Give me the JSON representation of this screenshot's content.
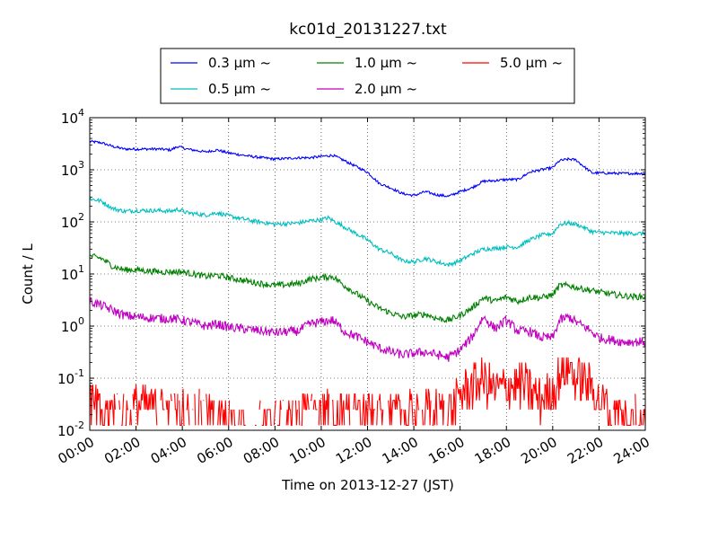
{
  "chart_data": {
    "type": "line",
    "title": "kc01d_20131227.txt",
    "xlabel": "Time on 2013-12-27 (JST)",
    "ylabel": "Count / L",
    "y_scale": "log",
    "ylim": [
      0.01,
      10000
    ],
    "xlim": [
      0,
      24
    ],
    "grid": true,
    "legend_position": "top",
    "x_tick_labels": [
      "00:00",
      "02:00",
      "04:00",
      "06:00",
      "08:00",
      "10:00",
      "12:00",
      "14:00",
      "16:00",
      "18:00",
      "20:00",
      "22:00",
      "24:00"
    ],
    "y_tick_labels": [
      {
        "base": "10",
        "exp": "-2"
      },
      {
        "base": "10",
        "exp": "-1"
      },
      {
        "base": "10",
        "exp": "0"
      },
      {
        "base": "10",
        "exp": "1"
      },
      {
        "base": "10",
        "exp": "2"
      },
      {
        "base": "10",
        "exp": "3"
      },
      {
        "base": "10",
        "exp": "4"
      }
    ],
    "series": [
      {
        "name": "0.3 μm ~",
        "color": "#0000ff",
        "noise": 0.025,
        "points": [
          [
            0,
            3500
          ],
          [
            0.5,
            3300
          ],
          [
            1,
            2800
          ],
          [
            1.5,
            2500
          ],
          [
            2,
            2500
          ],
          [
            3,
            2500
          ],
          [
            3.5,
            2400
          ],
          [
            3.8,
            2800
          ],
          [
            4.2,
            2500
          ],
          [
            5,
            2200
          ],
          [
            5.5,
            2400
          ],
          [
            6,
            2100
          ],
          [
            7,
            1800
          ],
          [
            8,
            1600
          ],
          [
            9,
            1700
          ],
          [
            9.5,
            1700
          ],
          [
            10,
            1800
          ],
          [
            10.5,
            1900
          ],
          [
            11,
            1500
          ],
          [
            12,
            900
          ],
          [
            12.5,
            550
          ],
          [
            13,
            450
          ],
          [
            13.5,
            350
          ],
          [
            14,
            320
          ],
          [
            14.5,
            380
          ],
          [
            15,
            330
          ],
          [
            15.5,
            310
          ],
          [
            16,
            380
          ],
          [
            16.5,
            450
          ],
          [
            17,
            600
          ],
          [
            17.5,
            620
          ],
          [
            18,
            650
          ],
          [
            18.5,
            650
          ],
          [
            19,
            900
          ],
          [
            19.5,
            1000
          ],
          [
            20,
            1100
          ],
          [
            20.3,
            1500
          ],
          [
            20.7,
            1600
          ],
          [
            21,
            1550
          ],
          [
            21.3,
            1200
          ],
          [
            21.7,
            870
          ],
          [
            22,
            870
          ],
          [
            23,
            850
          ],
          [
            24,
            850
          ]
        ]
      },
      {
        "name": "0.5 μm ~",
        "color": "#00bfbf",
        "noise": 0.04,
        "points": [
          [
            0,
            280
          ],
          [
            0.5,
            250
          ],
          [
            1,
            180
          ],
          [
            1.5,
            160
          ],
          [
            2,
            165
          ],
          [
            3,
            165
          ],
          [
            3.5,
            160
          ],
          [
            3.8,
            175
          ],
          [
            4.2,
            150
          ],
          [
            5,
            135
          ],
          [
            5.5,
            150
          ],
          [
            6,
            130
          ],
          [
            7,
            105
          ],
          [
            8,
            90
          ],
          [
            9,
            95
          ],
          [
            9.5,
            105
          ],
          [
            10,
            110
          ],
          [
            10.3,
            120
          ],
          [
            11,
            80
          ],
          [
            12,
            45
          ],
          [
            12.5,
            30
          ],
          [
            13,
            25
          ],
          [
            13.5,
            18
          ],
          [
            14,
            17
          ],
          [
            14.5,
            20
          ],
          [
            15,
            17
          ],
          [
            15.5,
            15
          ],
          [
            16,
            18
          ],
          [
            16.5,
            24
          ],
          [
            17,
            30
          ],
          [
            17.5,
            31
          ],
          [
            18,
            33
          ],
          [
            18.5,
            33
          ],
          [
            19,
            45
          ],
          [
            19.5,
            55
          ],
          [
            20,
            60
          ],
          [
            20.3,
            90
          ],
          [
            20.7,
            95
          ],
          [
            21,
            90
          ],
          [
            21.3,
            80
          ],
          [
            21.7,
            65
          ],
          [
            22,
            63
          ],
          [
            23,
            60
          ],
          [
            24,
            60
          ]
        ]
      },
      {
        "name": "1.0 μm ~",
        "color": "#008000",
        "noise": 0.06,
        "points": [
          [
            0,
            22
          ],
          [
            0.5,
            20
          ],
          [
            1,
            14
          ],
          [
            1.5,
            12
          ],
          [
            2,
            12
          ],
          [
            3,
            11
          ],
          [
            3.5,
            11
          ],
          [
            4,
            11
          ],
          [
            5,
            9
          ],
          [
            5.5,
            9.5
          ],
          [
            6,
            8.5
          ],
          [
            7,
            7
          ],
          [
            8,
            6
          ],
          [
            9,
            6.5
          ],
          [
            9.5,
            8
          ],
          [
            10,
            8.5
          ],
          [
            10.5,
            9
          ],
          [
            11,
            6
          ],
          [
            12,
            3
          ],
          [
            12.5,
            2.2
          ],
          [
            13,
            1.8
          ],
          [
            13.5,
            1.5
          ],
          [
            14,
            1.6
          ],
          [
            14.5,
            1.7
          ],
          [
            15,
            1.4
          ],
          [
            15.5,
            1.3
          ],
          [
            16,
            1.6
          ],
          [
            16.5,
            2.2
          ],
          [
            17,
            3.5
          ],
          [
            17.5,
            3
          ],
          [
            18,
            3.6
          ],
          [
            18.5,
            3
          ],
          [
            19,
            3.6
          ],
          [
            19.5,
            3.5
          ],
          [
            20,
            4
          ],
          [
            20.3,
            6
          ],
          [
            20.7,
            6
          ],
          [
            21,
            5.5
          ],
          [
            21.5,
            5
          ],
          [
            22,
            4.5
          ],
          [
            23,
            3.8
          ],
          [
            24,
            3.6
          ]
        ]
      },
      {
        "name": "2.0 μm ~",
        "color": "#bf00bf",
        "noise": 0.09,
        "points": [
          [
            0,
            3
          ],
          [
            0.5,
            2.5
          ],
          [
            1,
            2
          ],
          [
            1.5,
            1.6
          ],
          [
            2,
            1.5
          ],
          [
            3,
            1.4
          ],
          [
            3.5,
            1.4
          ],
          [
            4,
            1.3
          ],
          [
            5,
            1
          ],
          [
            5.5,
            1.1
          ],
          [
            6,
            0.95
          ],
          [
            7,
            0.85
          ],
          [
            8,
            0.75
          ],
          [
            9,
            0.8
          ],
          [
            9.5,
            1.1
          ],
          [
            10,
            1.2
          ],
          [
            10.5,
            1.3
          ],
          [
            11,
            0.8
          ],
          [
            12,
            0.5
          ],
          [
            12.5,
            0.38
          ],
          [
            13,
            0.32
          ],
          [
            13.5,
            0.28
          ],
          [
            14,
            0.3
          ],
          [
            14.5,
            0.32
          ],
          [
            15,
            0.28
          ],
          [
            15.5,
            0.25
          ],
          [
            16,
            0.35
          ],
          [
            16.5,
            0.6
          ],
          [
            17,
            1.5
          ],
          [
            17.5,
            0.9
          ],
          [
            18,
            1.3
          ],
          [
            18.5,
            0.8
          ],
          [
            19,
            0.8
          ],
          [
            19.5,
            0.6
          ],
          [
            20,
            0.6
          ],
          [
            20.3,
            1.3
          ],
          [
            20.7,
            1.5
          ],
          [
            21,
            1.2
          ],
          [
            21.5,
            0.9
          ],
          [
            22,
            0.6
          ],
          [
            23,
            0.5
          ],
          [
            24,
            0.5
          ]
        ]
      },
      {
        "name": "5.0 μm ~",
        "color": "#ff0000",
        "noise": 0,
        "points": [
          [
            0,
            0.04
          ],
          [
            0.5,
            0.02
          ],
          [
            1,
            0.025
          ],
          [
            1.5,
            0.02
          ],
          [
            2,
            0.03
          ],
          [
            3,
            0.025
          ],
          [
            3.5,
            0.02
          ],
          [
            4,
            0.025
          ],
          [
            5,
            0.02
          ],
          [
            6,
            0.013
          ],
          [
            8,
            0.013
          ],
          [
            9,
            0.018
          ],
          [
            10,
            0.025
          ],
          [
            11,
            0.02
          ],
          [
            12,
            0.02
          ],
          [
            13,
            0.02
          ],
          [
            14,
            0.02
          ],
          [
            15,
            0.025
          ],
          [
            15.5,
            0.02
          ],
          [
            16,
            0.05
          ],
          [
            16.5,
            0.07
          ],
          [
            17,
            0.09
          ],
          [
            17.5,
            0.06
          ],
          [
            18,
            0.07
          ],
          [
            18.5,
            0.08
          ],
          [
            19,
            0.06
          ],
          [
            19.5,
            0.04
          ],
          [
            20,
            0.05
          ],
          [
            20.3,
            0.12
          ],
          [
            20.7,
            0.18
          ],
          [
            21,
            0.1
          ],
          [
            21.5,
            0.08
          ],
          [
            22,
            0.04
          ],
          [
            23,
            0.02
          ],
          [
            24,
            0.02
          ]
        ]
      }
    ]
  }
}
